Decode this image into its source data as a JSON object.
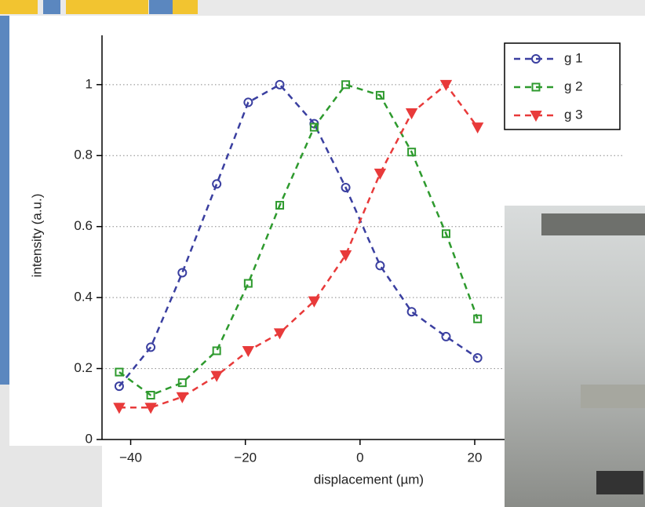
{
  "chart_data": {
    "type": "line",
    "x_label": "displacement (µm)",
    "y_label": "intensity (a.u.)",
    "xlim": [
      -45,
      46
    ],
    "ylim": [
      0,
      1.15
    ],
    "xticks": [
      {
        "value": -40,
        "label": "−40"
      },
      {
        "value": -20,
        "label": "−20"
      },
      0,
      20
    ],
    "yticks": [
      0,
      0.2,
      0.4,
      0.6,
      0.8,
      1
    ],
    "grid": true,
    "legend": "upper right",
    "series": [
      {
        "name": "g 1",
        "color": "#3a3fa0",
        "marker": "circle",
        "x": [
          -42,
          -36.5,
          -31,
          -25,
          -19.5,
          -14,
          -8,
          -2.5,
          3.5,
          9,
          15,
          20.5
        ],
        "values": [
          0.15,
          0.26,
          0.47,
          0.72,
          0.95,
          1.0,
          0.89,
          0.71,
          0.49,
          0.36,
          0.29,
          0.23
        ]
      },
      {
        "name": "g 2",
        "color": "#2e9a2e",
        "marker": "square",
        "x": [
          -42,
          -36.5,
          -31,
          -25,
          -19.5,
          -14,
          -8,
          -2.5,
          3.5,
          9,
          15,
          20.5
        ],
        "values": [
          0.19,
          0.125,
          0.16,
          0.25,
          0.44,
          0.66,
          0.88,
          1.0,
          0.97,
          0.81,
          0.58,
          0.34
        ]
      },
      {
        "name": "g 3",
        "color": "#e83a3a",
        "marker": "triangle-down",
        "x": [
          -42,
          -36.5,
          -31,
          -25,
          -19.5,
          -14,
          -8,
          -2.5,
          3.5,
          9,
          15,
          20.5
        ],
        "values": [
          0.09,
          0.09,
          0.12,
          0.18,
          0.25,
          0.3,
          0.39,
          0.52,
          0.75,
          0.92,
          1.0,
          0.88
        ]
      }
    ]
  }
}
